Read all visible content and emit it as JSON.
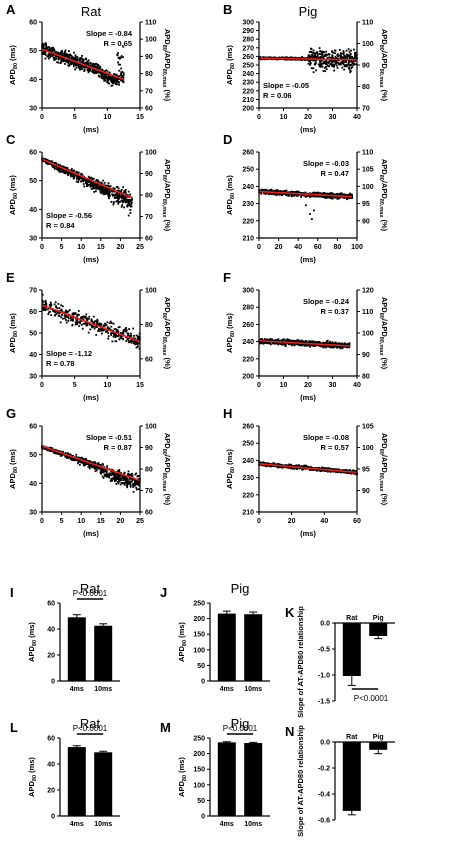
{
  "chart_data": [
    {
      "letter": "A",
      "type": "scatter",
      "title": "Rat",
      "xlabel": "(ms)",
      "ylabel": "APD80 (ms)",
      "y2label": "APD80/APD80,max (%)",
      "xlim": [
        0,
        15
      ],
      "ylim": [
        30,
        60
      ],
      "y2lim": [
        60,
        110
      ],
      "xticks": [
        0,
        5,
        10,
        15
      ],
      "yticks": [
        30,
        40,
        50,
        60
      ],
      "y2ticks": [
        60,
        70,
        80,
        90,
        100,
        110
      ],
      "slope": "Slope = -0.84",
      "r": "R = 0.65",
      "ann_pos": "top-right",
      "fit": {
        "x0": 0,
        "y0": 50.5,
        "x1": 12.5,
        "y1": 40
      },
      "xmax": 12.5
    },
    {
      "letter": "B",
      "type": "scatter",
      "title": "Pig",
      "xlabel": "(ms)",
      "ylabel": "APD80 (ms)",
      "y2label": "APD80/APD80,max (%)",
      "xlim": [
        0,
        40
      ],
      "ylim": [
        200,
        300
      ],
      "y2lim": [
        70,
        110
      ],
      "xticks": [
        0,
        10,
        20,
        30,
        40
      ],
      "yticks": [
        200,
        210,
        220,
        230,
        240,
        250,
        260,
        270,
        280,
        290,
        300
      ],
      "y2ticks": [
        70,
        80,
        90,
        100,
        110
      ],
      "slope": "Slope = -0.05",
      "r": "R = 0.06",
      "ann_pos": "bottom-left",
      "fit": {
        "x0": 0,
        "y0": 258,
        "x1": 40,
        "y1": 256
      },
      "xmax": 40
    },
    {
      "letter": "C",
      "type": "scatter",
      "title": "",
      "xlabel": "(ms)",
      "ylabel": "APD80 (ms)",
      "y2label": "APD80/APD80,max (%)",
      "xlim": [
        0,
        25
      ],
      "ylim": [
        30,
        60
      ],
      "y2lim": [
        60,
        100
      ],
      "xticks": [
        0,
        5,
        10,
        15,
        20,
        25
      ],
      "yticks": [
        30,
        40,
        50,
        60
      ],
      "y2ticks": [
        60,
        70,
        80,
        90,
        100
      ],
      "slope": "Slope = -0.56",
      "r": "R = 0.84",
      "ann_pos": "bottom-left",
      "fit": {
        "x0": 0,
        "y0": 57.5,
        "x1": 23,
        "y1": 44
      },
      "xmax": 23
    },
    {
      "letter": "D",
      "type": "scatter",
      "title": "",
      "xlabel": "(ms)",
      "ylabel": "APD80 (ms)",
      "y2label": "APD80/APD80,max (%)",
      "xlim": [
        0,
        100
      ],
      "ylim": [
        210,
        260
      ],
      "y2lim": [
        85,
        110
      ],
      "xticks": [
        0,
        20,
        40,
        60,
        80,
        100
      ],
      "yticks": [
        210,
        220,
        230,
        240,
        250,
        260
      ],
      "y2ticks": [
        90,
        95,
        100,
        105,
        110
      ],
      "slope": "Slope = -0.03",
      "r": "R = 0.47",
      "ann_pos": "top-right",
      "fit": {
        "x0": 0,
        "y0": 237,
        "x1": 95,
        "y1": 234
      },
      "xmax": 95
    },
    {
      "letter": "E",
      "type": "scatter",
      "title": "",
      "xlabel": "(ms)",
      "ylabel": "APD80 (ms)",
      "y2label": "APD80/APD80,max (%)",
      "xlim": [
        0,
        15
      ],
      "ylim": [
        30,
        70
      ],
      "y2lim": [
        50,
        100
      ],
      "xticks": [
        0,
        5,
        10,
        15
      ],
      "yticks": [
        30,
        40,
        50,
        60,
        70
      ],
      "y2ticks": [
        60,
        80,
        100
      ],
      "slope": "Slope = -1.12",
      "r": "R = 0.78",
      "ann_pos": "bottom-left",
      "fit": {
        "x0": 0,
        "y0": 63,
        "x1": 15,
        "y1": 46
      },
      "xmax": 15
    },
    {
      "letter": "F",
      "type": "scatter",
      "title": "",
      "xlabel": "(ms)",
      "ylabel": "APD80 (ms)",
      "y2label": "APD80/APD80,max (%)",
      "xlim": [
        0,
        40
      ],
      "ylim": [
        200,
        300
      ],
      "y2lim": [
        80,
        120
      ],
      "xticks": [
        0,
        10,
        20,
        30,
        40
      ],
      "yticks": [
        200,
        220,
        240,
        260,
        280,
        300
      ],
      "y2ticks": [
        80,
        90,
        100,
        110,
        120
      ],
      "slope": "Slope = -0.24",
      "r": "R = 0.37",
      "ann_pos": "top-right",
      "fit": {
        "x0": 0,
        "y0": 241,
        "x1": 37,
        "y1": 235
      },
      "xmax": 37
    },
    {
      "letter": "G",
      "type": "scatter",
      "title": "",
      "xlabel": "(ms)",
      "ylabel": "APD80 (ms)",
      "y2label": "APD80/APD80,max (%)",
      "xlim": [
        0,
        25
      ],
      "ylim": [
        30,
        60
      ],
      "y2lim": [
        60,
        100
      ],
      "xticks": [
        0,
        5,
        10,
        15,
        20,
        25
      ],
      "yticks": [
        30,
        40,
        50,
        60
      ],
      "y2ticks": [
        60,
        70,
        80,
        90,
        100
      ],
      "slope": "Slope = -0.51",
      "r": "R = 0.87",
      "ann_pos": "top-right",
      "fit": {
        "x0": 0,
        "y0": 53,
        "x1": 25,
        "y1": 41
      },
      "xmax": 25
    },
    {
      "letter": "H",
      "type": "scatter",
      "title": "",
      "xlabel": "(ms)",
      "ylabel": "APD80 (ms)",
      "y2label": "APD80/APD80,max (%)",
      "xlim": [
        0,
        60
      ],
      "ylim": [
        210,
        260
      ],
      "y2lim": [
        85,
        105
      ],
      "xticks": [
        0,
        20,
        40,
        60
      ],
      "yticks": [
        210,
        220,
        230,
        240,
        250,
        260
      ],
      "y2ticks": [
        90,
        95,
        100,
        105
      ],
      "slope": "Slope = -0.08",
      "r": "R = 0.57",
      "ann_pos": "top-right",
      "fit": {
        "x0": 0,
        "y0": 238,
        "x1": 60,
        "y1": 233
      },
      "xmax": 60
    },
    {
      "letter": "I",
      "type": "bar",
      "title": "Rat",
      "categories": [
        "4ms",
        "10ms"
      ],
      "values": [
        49,
        42.5
      ],
      "errors": [
        2,
        1.5
      ],
      "ylabel": "APD80 (ms)",
      "ylim": [
        0,
        60
      ],
      "yticks": [
        0,
        20,
        40,
        60
      ],
      "sig": "P<0.0001",
      "sig_pos": "top"
    },
    {
      "letter": "J",
      "type": "bar",
      "title": "Pig",
      "categories": [
        "4ms",
        "10ms"
      ],
      "values": [
        216,
        214
      ],
      "errors": [
        8,
        7
      ],
      "ylabel": "APD80 (ms)",
      "ylim": [
        0,
        250
      ],
      "yticks": [
        0,
        50,
        100,
        150,
        200,
        250
      ],
      "sig": "",
      "sig_pos": "top"
    },
    {
      "letter": "K",
      "type": "bar",
      "title": "",
      "categories": [
        "Rat",
        "Pig"
      ],
      "values": [
        -1.02,
        -0.25
      ],
      "errors": [
        0.18,
        0.05
      ],
      "ylabel": "Slope of AT-APD80 relationship",
      "ylim": [
        -1.5,
        0
      ],
      "yticks": [
        0.0,
        -0.5,
        -1.0,
        -1.5
      ],
      "sig": "P<0.0001",
      "sig_pos": "bottom"
    },
    {
      "letter": "L",
      "type": "bar",
      "title": "Rat",
      "categories": [
        "4ms",
        "10ms"
      ],
      "values": [
        53,
        49
      ],
      "errors": [
        1,
        0.8
      ],
      "ylabel": "APD80 (ms)",
      "ylim": [
        0,
        60
      ],
      "yticks": [
        0,
        20,
        40,
        60
      ],
      "sig": "P<0.0001",
      "sig_pos": "top"
    },
    {
      "letter": "M",
      "type": "bar",
      "title": "Pig",
      "categories": [
        "4ms",
        "10ms"
      ],
      "values": [
        236,
        234
      ],
      "errors": [
        2,
        2
      ],
      "ylabel": "APD80 (ms)",
      "ylim": [
        0,
        250
      ],
      "yticks": [
        0,
        50,
        100,
        150,
        200,
        250
      ],
      "sig": "P<0.0001",
      "sig_pos": "top"
    },
    {
      "letter": "N",
      "type": "bar",
      "title": "",
      "categories": [
        "Rat",
        "Pig"
      ],
      "values": [
        -0.53,
        -0.06
      ],
      "errors": [
        0.03,
        0.03
      ],
      "ylabel": "Slope of AT-APD80 relationship",
      "ylim": [
        -0.6,
        0
      ],
      "yticks": [
        0.0,
        -0.2,
        -0.4,
        -0.6
      ],
      "sig": "",
      "sig_pos": "bottom"
    }
  ],
  "colors": {
    "fit": "#e8201c",
    "points": "#000000",
    "bar": "#000000"
  }
}
